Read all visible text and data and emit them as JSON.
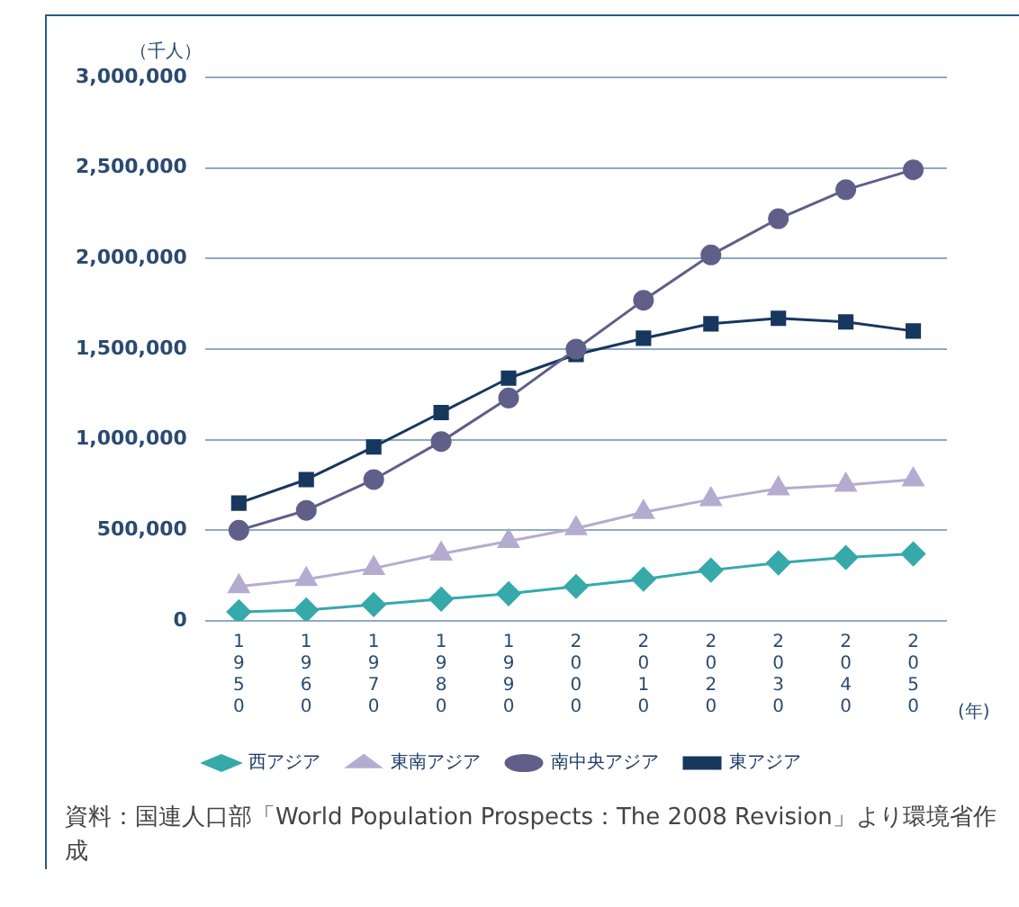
{
  "chart_data": {
    "type": "line",
    "ylabel": "（千人）",
    "xlabel": "(年)",
    "categories": [
      "1950",
      "1960",
      "1970",
      "1980",
      "1990",
      "2000",
      "2010",
      "2020",
      "2030",
      "2040",
      "2050"
    ],
    "series": [
      {
        "name": "東アジア",
        "color": "#17375e",
        "marker": "square",
        "values": [
          650000,
          780000,
          960000,
          1150000,
          1340000,
          1470000,
          1560000,
          1640000,
          1670000,
          1650000,
          1600000
        ]
      },
      {
        "name": "南中央アジア",
        "color": "#5f5f8a",
        "marker": "circle",
        "values": [
          500000,
          610000,
          780000,
          990000,
          1230000,
          1500000,
          1770000,
          2020000,
          2220000,
          2380000,
          2490000
        ]
      },
      {
        "name": "東南アジア",
        "color": "#b4acd0",
        "marker": "triangle",
        "values": [
          190000,
          230000,
          290000,
          370000,
          440000,
          510000,
          600000,
          670000,
          730000,
          750000,
          780000
        ]
      },
      {
        "name": "西アジア",
        "color": "#36a9ab",
        "marker": "diamond",
        "values": [
          50000,
          60000,
          90000,
          120000,
          150000,
          190000,
          230000,
          280000,
          320000,
          350000,
          370000
        ]
      }
    ],
    "ylim": [
      0,
      3000000
    ],
    "yticks": [
      0,
      {
        "value": 500000,
        "label": "500,000"
      },
      {
        "value": 1000000,
        "label": "1,000,000"
      },
      {
        "value": 1500000,
        "label": "1,500,000"
      },
      {
        "value": 2000000,
        "label": "2,000,000"
      },
      {
        "value": 2500000,
        "label": "2,500,000"
      },
      {
        "value": 3000000,
        "label": "3,000,000"
      }
    ],
    "grid": "y",
    "legend": "bottom",
    "annotations": [
      "資料：国連人口部「World Population Prospects：The 2008 Revision」より環境省作成"
    ]
  }
}
